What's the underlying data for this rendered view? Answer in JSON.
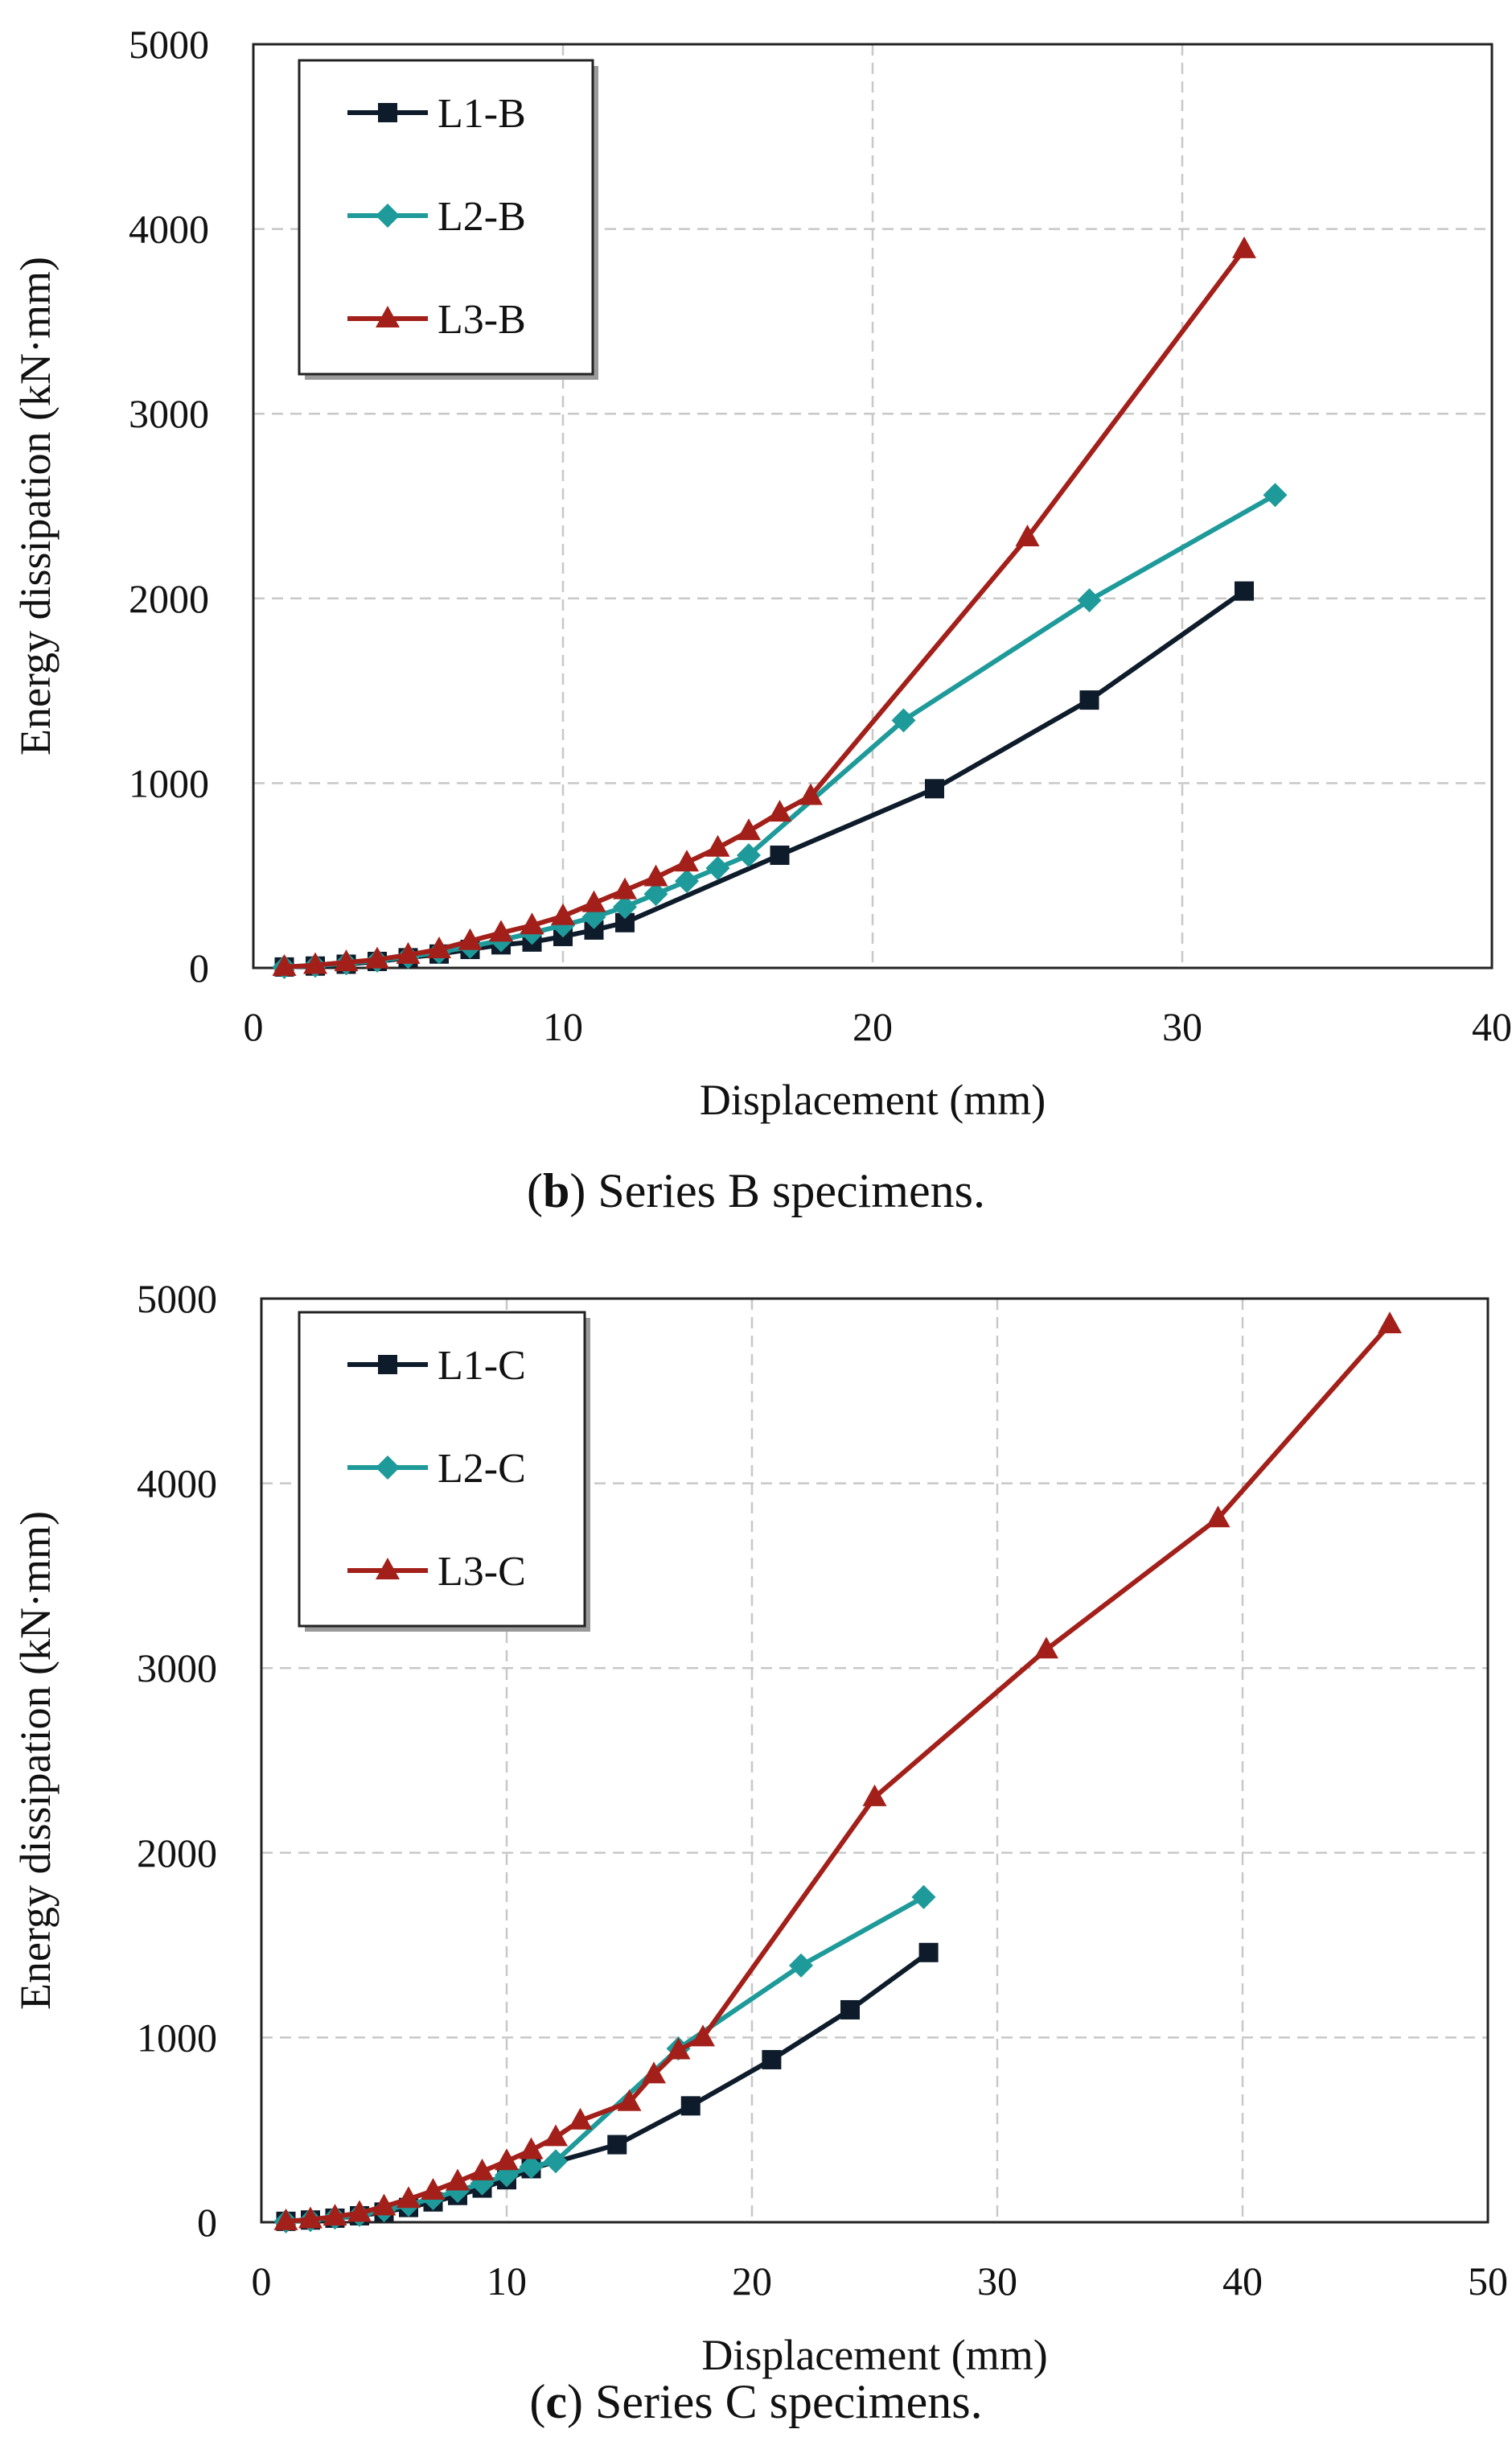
{
  "chart_data": [
    {
      "type": "line",
      "title": "",
      "caption": {
        "open": "(",
        "letter": "b",
        "close": ")",
        "text": " Series B specimens."
      },
      "xlabel": "Displacement (mm)",
      "ylabel": "Energy dissipation (kN·mm)",
      "xlim": [
        0,
        40
      ],
      "ylim": [
        0,
        5000
      ],
      "xticks": [
        0,
        10,
        20,
        30,
        40
      ],
      "yticks": [
        0,
        1000,
        2000,
        3000,
        4000,
        5000
      ],
      "grid": true,
      "legend_position": "top-left",
      "series": [
        {
          "name": "L1-B",
          "color": "#0d1b2a",
          "marker": "square",
          "x": [
            1,
            2,
            3,
            4,
            5,
            6,
            7,
            8,
            9,
            10,
            11,
            12,
            17,
            22,
            27,
            32
          ],
          "y": [
            5,
            10,
            20,
            35,
            55,
            75,
            100,
            125,
            140,
            170,
            205,
            245,
            610,
            970,
            1450,
            2040
          ]
        },
        {
          "name": "L2-B",
          "color": "#1f9a9a",
          "marker": "diamond",
          "x": [
            1,
            2,
            3,
            4,
            5,
            6,
            7,
            8,
            9,
            10,
            11,
            12,
            13,
            14,
            15,
            16,
            21,
            27,
            33
          ],
          "y": [
            5,
            12,
            25,
            40,
            60,
            85,
            115,
            150,
            190,
            230,
            275,
            330,
            400,
            470,
            540,
            610,
            1340,
            1990,
            2560
          ]
        },
        {
          "name": "L3-B",
          "color": "#a3201a",
          "marker": "triangle",
          "x": [
            1,
            2,
            3,
            4,
            5,
            6,
            7,
            8,
            9,
            10,
            11,
            12,
            13,
            14,
            15,
            16,
            17,
            18,
            25,
            32
          ],
          "y": [
            5,
            15,
            30,
            45,
            70,
            100,
            145,
            190,
            230,
            280,
            350,
            420,
            490,
            570,
            650,
            740,
            840,
            930,
            2330,
            3890
          ]
        }
      ]
    },
    {
      "type": "line",
      "title": "",
      "caption": {
        "open": "(",
        "letter": "c",
        "close": ")",
        "text": " Series C specimens."
      },
      "xlabel": "Displacement (mm)",
      "ylabel": "Energy dissipation (kN·mm)",
      "xlim": [
        0,
        50
      ],
      "ylim": [
        0,
        5000
      ],
      "xticks": [
        0,
        10,
        20,
        30,
        40,
        50
      ],
      "yticks": [
        0,
        1000,
        2000,
        3000,
        4000,
        5000
      ],
      "grid": true,
      "legend_position": "top-left",
      "series": [
        {
          "name": "L1-C",
          "color": "#0d1b2a",
          "marker": "square",
          "x": [
            1,
            2,
            3,
            4,
            5,
            6,
            7,
            8,
            9,
            10,
            11,
            14.5,
            17.5,
            20.8,
            24,
            27.2
          ],
          "y": [
            5,
            12,
            22,
            35,
            55,
            80,
            110,
            145,
            185,
            230,
            290,
            420,
            630,
            880,
            1150,
            1460
          ]
        },
        {
          "name": "L2-C",
          "color": "#1f9a9a",
          "marker": "diamond",
          "x": [
            1,
            2,
            3,
            4,
            5,
            6,
            7,
            8,
            9,
            10,
            11,
            12,
            17,
            22,
            27
          ],
          "y": [
            5,
            12,
            25,
            40,
            65,
            95,
            130,
            170,
            210,
            255,
            300,
            330,
            940,
            1390,
            1760
          ]
        },
        {
          "name": "L3-C",
          "color": "#a3201a",
          "marker": "triangle",
          "x": [
            1,
            2,
            3,
            4,
            5,
            6,
            7,
            8,
            9,
            10,
            11,
            12,
            13,
            15,
            16,
            17,
            18,
            25,
            32,
            39,
            46
          ],
          "y": [
            5,
            15,
            30,
            50,
            85,
            125,
            170,
            220,
            275,
            330,
            390,
            460,
            550,
            650,
            800,
            930,
            1000,
            2300,
            3100,
            3810,
            4860
          ]
        }
      ]
    }
  ]
}
